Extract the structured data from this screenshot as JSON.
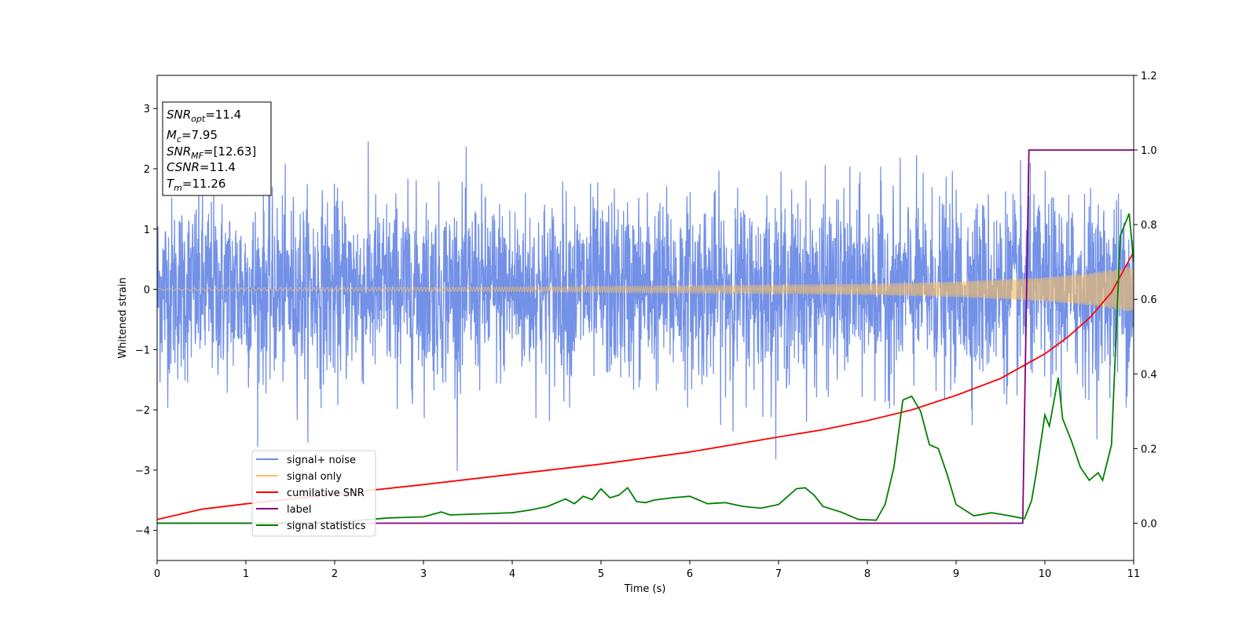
{
  "chart_data": {
    "type": "line",
    "xlabel": "Time (s)",
    "ylabel": "Whitened strain",
    "xlim": [
      0,
      11
    ],
    "ylim": [
      -4.5,
      3.55
    ],
    "y2lim": [
      -0.1,
      1.2
    ],
    "x_ticks": [
      0,
      1,
      2,
      3,
      4,
      5,
      6,
      7,
      8,
      9,
      10,
      11
    ],
    "y_ticks": [
      -4,
      -3,
      -2,
      -1,
      0,
      1,
      2,
      3
    ],
    "y2_ticks": [
      "0.0",
      "0.2",
      "0.4",
      "0.6",
      "0.8",
      "1.0",
      "1.2"
    ],
    "y2_tick_values": [
      0.0,
      0.2,
      0.4,
      0.6,
      0.8,
      1.0,
      1.2
    ],
    "legend_position": "lower-left",
    "annotation": {
      "lines": [
        {
          "base": "SNR",
          "sub": "opt",
          "value": "=11.4"
        },
        {
          "base": "M",
          "sub": "c",
          "value": "=7.95"
        },
        {
          "base": "SNR",
          "sub": "MF",
          "value": "=[12.63]"
        },
        {
          "base": "CSNR",
          "sub": "",
          "value": "=11.4"
        },
        {
          "base": "T",
          "sub": "m",
          "value": "=11.26"
        }
      ]
    },
    "series": [
      {
        "name": "signal+ noise",
        "color": "#6b8be6",
        "axis": "left",
        "noise_std": 0.75,
        "noise_peak": 3.2
      },
      {
        "name": "signal only",
        "color": "#f5c06a",
        "axis": "left",
        "envelope_x": [
          0,
          2,
          4,
          6,
          8,
          9,
          10,
          10.5,
          11
        ],
        "envelope_y": [
          0.02,
          0.03,
          0.04,
          0.06,
          0.09,
          0.13,
          0.2,
          0.27,
          0.38
        ]
      },
      {
        "name": "cumilative SNR",
        "color": "#ff0000",
        "axis": "left",
        "x": [
          0,
          0.5,
          1,
          2,
          3,
          4,
          5,
          6,
          7,
          7.5,
          8,
          8.5,
          9,
          9.5,
          10,
          10.25,
          10.5,
          10.75,
          11
        ],
        "y": [
          -3.82,
          -3.65,
          -3.56,
          -3.4,
          -3.24,
          -3.07,
          -2.9,
          -2.7,
          -2.45,
          -2.33,
          -2.18,
          -2.0,
          -1.76,
          -1.48,
          -1.07,
          -0.8,
          -0.48,
          -0.05,
          0.62
        ]
      },
      {
        "name": "label",
        "color": "#800080",
        "axis": "right",
        "x": [
          0,
          9.75,
          9.82,
          11
        ],
        "y": [
          0,
          0,
          1,
          1
        ]
      },
      {
        "name": "signal statistics",
        "color": "#008000",
        "axis": "right",
        "x": [
          0,
          0.5,
          1,
          1.5,
          2,
          2.3,
          2.6,
          3.0,
          3.2,
          3.3,
          3.5,
          4.0,
          4.2,
          4.4,
          4.6,
          4.7,
          4.8,
          4.9,
          5.0,
          5.1,
          5.2,
          5.3,
          5.4,
          5.5,
          5.6,
          5.8,
          6.0,
          6.2,
          6.4,
          6.6,
          6.8,
          7.0,
          7.2,
          7.3,
          7.4,
          7.5,
          7.7,
          7.9,
          8.1,
          8.2,
          8.3,
          8.4,
          8.5,
          8.6,
          8.7,
          8.8,
          8.9,
          9.0,
          9.2,
          9.4,
          9.6,
          9.77,
          9.85,
          9.9,
          10.0,
          10.05,
          10.15,
          10.2,
          10.3,
          10.4,
          10.5,
          10.6,
          10.65,
          10.75,
          10.85,
          10.95,
          11.0
        ],
        "y": [
          0,
          0,
          0,
          0.001,
          0.003,
          0.008,
          0.014,
          0.017,
          0.03,
          0.022,
          0.024,
          0.028,
          0.035,
          0.045,
          0.065,
          0.052,
          0.072,
          0.063,
          0.092,
          0.068,
          0.075,
          0.095,
          0.058,
          0.055,
          0.062,
          0.068,
          0.072,
          0.052,
          0.055,
          0.045,
          0.04,
          0.05,
          0.092,
          0.095,
          0.075,
          0.045,
          0.03,
          0.01,
          0.008,
          0.05,
          0.15,
          0.33,
          0.34,
          0.3,
          0.21,
          0.2,
          0.13,
          0.05,
          0.02,
          0.028,
          0.02,
          0.012,
          0.06,
          0.13,
          0.29,
          0.26,
          0.39,
          0.28,
          0.22,
          0.15,
          0.115,
          0.135,
          0.115,
          0.21,
          0.77,
          0.83,
          0.7
        ]
      }
    ]
  }
}
